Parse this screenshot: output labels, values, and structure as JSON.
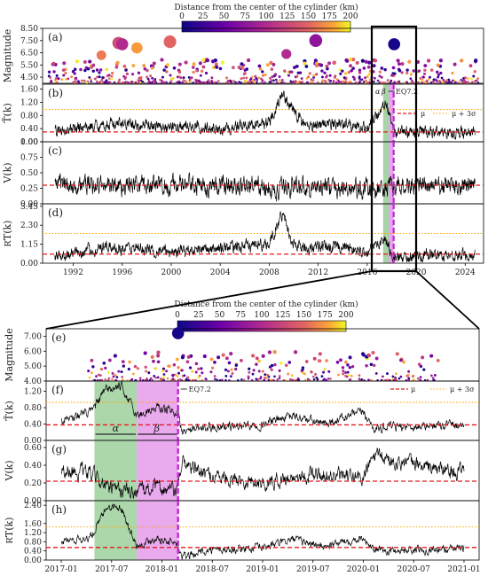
{
  "colorbar": {
    "title": "Distance from the center of the cylinder (km)",
    "ticks": [
      "0",
      "25",
      "50",
      "75",
      "100",
      "125",
      "150",
      "175",
      "200"
    ]
  },
  "eq_label": "EQ7.2",
  "alpha_label": "α",
  "beta_label": "β",
  "legend": {
    "mu": "μ",
    "mu3s": "μ + 3σ"
  },
  "colors": {
    "signal": "#000000",
    "mean": "#e41a1c",
    "threshold": "#ffa500",
    "eq_line": "#c026d3",
    "alpha_band": "#8fc98f",
    "beta_band": "#e28ee8"
  },
  "chart_data": [
    {
      "id": "a",
      "panel_label": "(a)",
      "type": "scatter",
      "ylabel": "Magnitude",
      "x_range": [
        1989.5,
        2025.5
      ],
      "yticks": [
        "4.50",
        "5.50",
        "6.50",
        "7.50",
        "8.50"
      ],
      "ylim": [
        4.0,
        8.5
      ],
      "xticks": [
        "1992",
        "1996",
        "2000",
        "2004",
        "2008",
        "2012",
        "2016",
        "2020",
        "2024"
      ],
      "highlight_events": [
        {
          "x": 1995.7,
          "magnitude": 7.3,
          "distance_km": 130
        },
        {
          "x": 1996.0,
          "magnitude": 7.2,
          "distance_km": 100
        },
        {
          "x": 1999.9,
          "magnitude": 7.4,
          "distance_km": 150
        },
        {
          "x": 2011.8,
          "magnitude": 7.5,
          "distance_km": 75
        },
        {
          "x": 2018.2,
          "magnitude": 7.2,
          "distance_km": 5
        },
        {
          "x": 1997.2,
          "magnitude": 6.9,
          "distance_km": 175
        },
        {
          "x": 1994.3,
          "magnitude": 6.3,
          "distance_km": 160
        },
        {
          "x": 2009.4,
          "magnitude": 6.4,
          "distance_km": 100
        }
      ]
    },
    {
      "id": "b",
      "panel_label": "(b)",
      "type": "line",
      "ylabel": "T̃(k)",
      "yticks": [
        "0.00",
        "0.40",
        "0.80",
        "1.20",
        "1.60"
      ],
      "ylim": [
        0.0,
        1.75
      ],
      "mu": 0.3,
      "mu_plus_3sigma": 0.98,
      "shape": [
        [
          1990.5,
          0.3
        ],
        [
          1995,
          0.55
        ],
        [
          2000,
          0.45
        ],
        [
          2004,
          0.4
        ],
        [
          2008,
          0.6
        ],
        [
          2009.0,
          1.5
        ],
        [
          2009.6,
          1.1
        ],
        [
          2011,
          0.5
        ],
        [
          2014,
          0.55
        ],
        [
          2016,
          0.4
        ],
        [
          2017.5,
          1.2
        ],
        [
          2018.3,
          0.3
        ],
        [
          2021,
          0.3
        ],
        [
          2024.8,
          0.3
        ]
      ],
      "noise": 0.14
    },
    {
      "id": "c",
      "panel_label": "(c)",
      "type": "line",
      "ylabel": "V(k)",
      "yticks": [
        "0.00",
        "0.25",
        "0.50",
        "0.75",
        "1.00"
      ],
      "ylim": [
        0.0,
        1.0
      ],
      "mu": 0.3,
      "shape": [
        [
          1990.5,
          0.3
        ],
        [
          2000,
          0.3
        ],
        [
          2007,
          0.28
        ],
        [
          2008.5,
          0.18
        ],
        [
          2010,
          0.3
        ],
        [
          2017,
          0.22
        ],
        [
          2018.2,
          0.28
        ],
        [
          2024.8,
          0.3
        ]
      ],
      "noise": 0.12
    },
    {
      "id": "d",
      "panel_label": "(d)",
      "type": "line",
      "ylabel": "R͂T(k)",
      "yticks": [
        "0.00",
        "1.15",
        "2.30",
        "3.45"
      ],
      "ylim": [
        0.0,
        3.6
      ],
      "mu": 0.55,
      "mu_plus_3sigma": 1.8,
      "shape": [
        [
          1990.5,
          0.4
        ],
        [
          1995,
          1.0
        ],
        [
          2000,
          0.7
        ],
        [
          2004,
          0.9
        ],
        [
          2008,
          1.2
        ],
        [
          2009.2,
          3.2
        ],
        [
          2009.8,
          1.2
        ],
        [
          2011,
          0.9
        ],
        [
          2014,
          1.0
        ],
        [
          2016,
          0.6
        ],
        [
          2017.4,
          1.5
        ],
        [
          2018.3,
          0.3
        ],
        [
          2021,
          0.5
        ],
        [
          2024.8,
          0.5
        ]
      ],
      "noise": 0.28
    },
    {
      "id": "e",
      "panel_label": "(e)",
      "type": "scatter",
      "ylabel": "Magnitude",
      "x_range": [
        2016.85,
        2021.15
      ],
      "yticks": [
        "4.00",
        "5.00",
        "6.00",
        "7.00"
      ],
      "ylim": [
        4.0,
        7.5
      ],
      "xticks": [
        "2017-01",
        "2017-07",
        "2018-01",
        "2018-07",
        "2019-01",
        "2019-07",
        "2020-01",
        "2020-07",
        "2021-01"
      ],
      "highlight_events": [
        {
          "x": 2018.16,
          "magnitude": 7.2,
          "distance_km": 5
        }
      ]
    },
    {
      "id": "f",
      "panel_label": "(f)",
      "type": "line",
      "ylabel": "T̃(k)",
      "yticks": [
        "0.00",
        "0.40",
        "0.80",
        "1.20"
      ],
      "ylim": [
        0.0,
        1.45
      ],
      "mu": 0.38,
      "mu_plus_3sigma": 0.93,
      "shape": [
        [
          2017.0,
          0.5
        ],
        [
          2017.3,
          0.7
        ],
        [
          2017.45,
          1.25
        ],
        [
          2017.6,
          1.3
        ],
        [
          2017.75,
          0.6
        ],
        [
          2017.95,
          0.8
        ],
        [
          2018.15,
          0.7
        ],
        [
          2018.2,
          0.2
        ],
        [
          2018.4,
          0.3
        ],
        [
          2019.0,
          0.4
        ],
        [
          2019.3,
          0.6
        ],
        [
          2019.6,
          0.4
        ],
        [
          2020.0,
          0.7
        ],
        [
          2020.1,
          0.3
        ],
        [
          2021.0,
          0.4
        ]
      ],
      "noise": 0.09
    },
    {
      "id": "g",
      "panel_label": "(g)",
      "type": "line",
      "ylabel": "V(k)",
      "yticks": [
        "0.00",
        "0.20",
        "0.40",
        "0.60"
      ],
      "ylim": [
        0.0,
        0.68
      ],
      "mu": 0.22,
      "shape": [
        [
          2017.0,
          0.35
        ],
        [
          2017.3,
          0.3
        ],
        [
          2017.5,
          0.12
        ],
        [
          2017.7,
          0.1
        ],
        [
          2017.95,
          0.15
        ],
        [
          2018.15,
          0.1
        ],
        [
          2018.2,
          0.45
        ],
        [
          2018.4,
          0.3
        ],
        [
          2019.0,
          0.2
        ],
        [
          2019.5,
          0.3
        ],
        [
          2020.0,
          0.25
        ],
        [
          2020.1,
          0.5
        ],
        [
          2021.0,
          0.3
        ]
      ],
      "noise": 0.07
    },
    {
      "id": "h",
      "panel_label": "(h)",
      "type": "line",
      "ylabel": "R͂T(k)",
      "yticks": [
        "0.00",
        "0.40",
        "0.80",
        "1.20",
        "1.60",
        "2.40"
      ],
      "ytick_values": [
        0.0,
        0.4,
        0.8,
        1.2,
        1.6,
        2.4
      ],
      "ylim": [
        0.0,
        2.6
      ],
      "mu": 0.55,
      "mu_plus_3sigma": 1.45,
      "shape": [
        [
          2017.0,
          0.8
        ],
        [
          2017.3,
          1.0
        ],
        [
          2017.45,
          2.3
        ],
        [
          2017.6,
          2.3
        ],
        [
          2017.75,
          0.6
        ],
        [
          2017.95,
          1.0
        ],
        [
          2018.15,
          0.7
        ],
        [
          2018.2,
          0.1
        ],
        [
          2018.4,
          0.4
        ],
        [
          2019.0,
          0.55
        ],
        [
          2019.3,
          0.9
        ],
        [
          2019.6,
          0.6
        ],
        [
          2020.0,
          1.0
        ],
        [
          2020.1,
          0.4
        ],
        [
          2021.0,
          0.5
        ]
      ],
      "noise": 0.14
    }
  ]
}
